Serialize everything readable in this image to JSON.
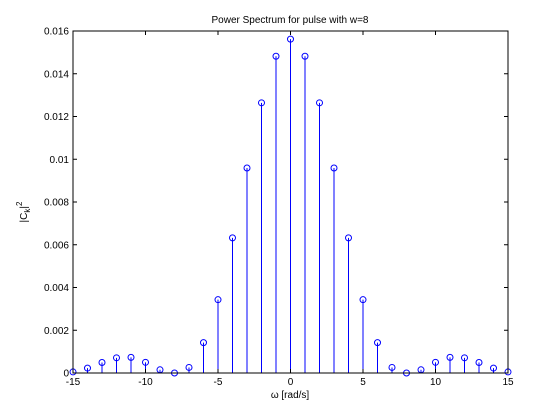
{
  "chart_data": {
    "type": "stem",
    "title": "Power Spectrum for pulse with w=8",
    "xlabel": "ω [rad/s]",
    "ylabel_main": "|C",
    "ylabel_sub": "k",
    "ylabel_end": "|",
    "ylabel_sup": "2",
    "xlim": [
      -15,
      15
    ],
    "ylim": [
      0,
      0.016
    ],
    "xticks": [
      -15,
      -10,
      -5,
      0,
      5,
      10,
      15
    ],
    "xtick_labels": [
      "-15",
      "-10",
      "-5",
      "0",
      "5",
      "10",
      "15"
    ],
    "yticks": [
      0,
      0.002,
      0.004,
      0.006,
      0.008,
      0.01,
      0.012,
      0.014,
      0.016
    ],
    "ytick_labels": [
      "0",
      "0.002",
      "0.004",
      "0.006",
      "0.008",
      "0.01",
      "0.012",
      "0.014",
      "0.016"
    ],
    "grid": false,
    "color": "#0000ff",
    "x": [
      -15,
      -14,
      -13,
      -12,
      -11,
      -10,
      -9,
      -8,
      -7,
      -6,
      -5,
      -4,
      -3,
      -2,
      -1,
      0,
      1,
      2,
      3,
      4,
      5,
      6,
      7,
      8,
      9,
      10,
      11,
      12,
      13,
      14,
      15
    ],
    "y": [
      5e-05,
      0.00023,
      0.00049,
      0.00071,
      0.00073,
      0.0005,
      0.00015,
      0,
      0.00026,
      0.00142,
      0.00343,
      0.00632,
      0.00959,
      0.01264,
      0.01482,
      0.01562,
      0.01482,
      0.01264,
      0.00959,
      0.00632,
      0.00343,
      0.00142,
      0.00026,
      0,
      0.00015,
      0.0005,
      0.00073,
      0.00071,
      0.00049,
      0.00023,
      5e-05
    ]
  }
}
